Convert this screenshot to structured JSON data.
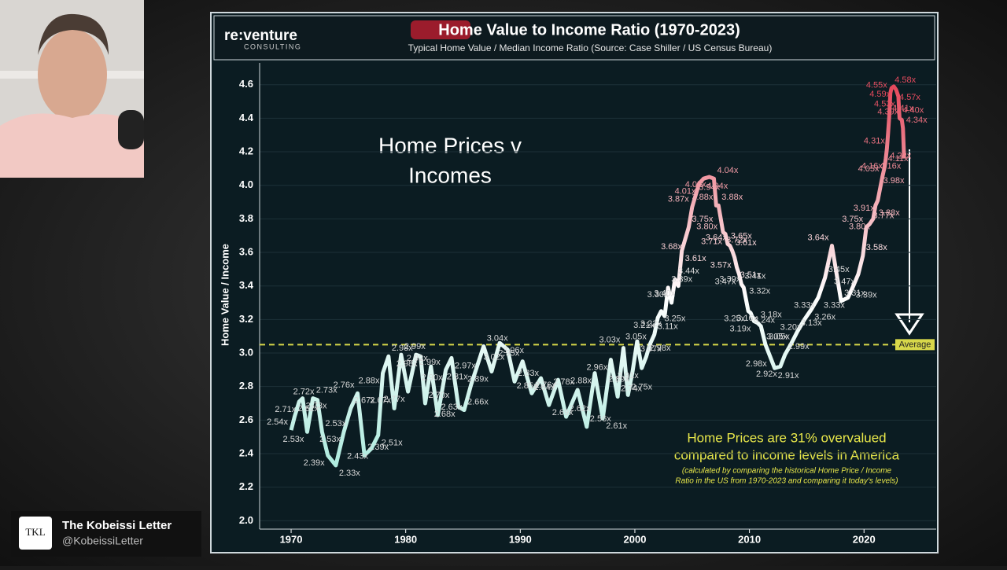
{
  "overlay": {
    "badge_logo": "TKL",
    "badge_name": "The Kobeissi Letter",
    "badge_handle": "@KobeissiLetter"
  },
  "header": {
    "logo": "re:venture",
    "logo_sub": "CONSULTING"
  },
  "chart_data": {
    "type": "line",
    "title": "Home Value to Income Ratio (1970-2023)",
    "subtitle": "Typical Home Value / Median Income Ratio (Source: Case Shiller / US Census Bureau)",
    "y_label": "Home Value / Income",
    "annotations": [
      "Home Prices v",
      "Incomes",
      "Home Prices are 31% overvalued",
      "compared to income levels in America",
      "(calculated by comparing the historical Home Price / Income",
      "Ratio in the US from 1970-2023 and comparing it today's levels)"
    ],
    "average": {
      "label": "Average",
      "value": 3.05,
      "color": "#d8d84a"
    },
    "gradient_colors": [
      "#8fe3d2",
      "#ffffff",
      "#e2354a"
    ],
    "xlim": [
      1967.25,
      2026.3
    ],
    "xticks": [
      1970,
      1980,
      1990,
      2000,
      2010,
      2020
    ],
    "ylim": [
      1.95,
      4.73
    ],
    "yticks": [
      {
        "value": 2,
        "label": "2.0"
      },
      2.2,
      2.4,
      2.6,
      2.8,
      {
        "value": 3,
        "label": "3.0"
      },
      3.2,
      3.4,
      3.6,
      3.8,
      {
        "value": 4,
        "label": "4.0"
      },
      4.2,
      4.4,
      4.6
    ],
    "grid": true,
    "series": [
      {
        "name": "Home Value / Income",
        "x": [
          1970.0,
          1970.3,
          1970.7,
          1971.0,
          1971.4,
          1971.9,
          1972.3,
          1972.7,
          1973.2,
          1973.9,
          1974.6,
          1975.2,
          1975.8,
          1976.4,
          1977.0,
          1977.6,
          1978.0,
          1978.5,
          1979.0,
          1979.6,
          1980.2,
          1980.9,
          1981.3,
          1981.7,
          1982.2,
          1982.8,
          1983.5,
          1984.0,
          1984.6,
          1985.1,
          1985.7,
          1986.8,
          1987.5,
          1988.2,
          1988.9,
          1989.5,
          1990.2,
          1991.0,
          1991.8,
          1992.5,
          1993.3,
          1994.0,
          1995.0,
          1995.8,
          1996.5,
          1997.2,
          1997.9,
          1998.5,
          1999.0,
          1999.4,
          1999.8,
          2000.2,
          2000.6,
          2001.0,
          2001.3,
          2001.7,
          2002.0,
          2002.3,
          2002.6,
          2002.9,
          2003.2,
          2003.5,
          2003.8,
          2004.1,
          2004.4,
          2004.7,
          2005.0,
          2005.3,
          2005.6,
          2006.0,
          2006.5,
          2006.9,
          2007.1,
          2007.3,
          2007.5,
          2007.7,
          2007.9,
          2008.1,
          2008.3,
          2008.5,
          2008.7,
          2008.9,
          2009.1,
          2009.3,
          2009.5,
          2009.7,
          2009.9,
          2010.1,
          2010.4,
          2010.7,
          2011.0,
          2011.4,
          2011.8,
          2012.2,
          2012.7,
          2013.1,
          2013.6,
          2014.2,
          2014.8,
          2015.4,
          2016.0,
          2016.6,
          2017.2,
          2018.0,
          2018.6,
          2019.0,
          2019.5,
          2019.9,
          2020.2,
          2020.5,
          2020.8,
          2021.0,
          2021.2,
          2021.4,
          2021.6,
          2021.8,
          2021.9,
          2022.0,
          2022.1,
          2022.2,
          2022.3,
          2022.4,
          2022.6,
          2022.8,
          2023.0,
          2023.1,
          2023.3,
          2023.4,
          2023.5
        ],
        "values": [
          2.54,
          2.62,
          2.71,
          2.73,
          2.53,
          2.73,
          2.72,
          2.53,
          2.39,
          2.33,
          2.53,
          2.67,
          2.76,
          2.39,
          2.43,
          2.51,
          2.88,
          2.98,
          2.67,
          2.99,
          2.77,
          2.99,
          2.98,
          2.7,
          2.92,
          2.63,
          2.9,
          2.97,
          2.68,
          2.66,
          2.81,
          3.04,
          2.89,
          3.06,
          3.02,
          2.83,
          2.95,
          2.76,
          2.85,
          2.69,
          2.84,
          2.62,
          2.78,
          2.56,
          2.88,
          2.61,
          2.96,
          2.74,
          3.03,
          2.75,
          2.89,
          3.07,
          2.91,
          2.98,
          3.05,
          3.11,
          3.21,
          3.25,
          3.22,
          3.39,
          3.3,
          3.44,
          3.4,
          3.61,
          3.68,
          3.75,
          3.87,
          3.94,
          4.01,
          4.04,
          4.05,
          4.04,
          3.88,
          3.88,
          3.8,
          3.72,
          3.71,
          3.65,
          3.64,
          3.61,
          3.57,
          3.51,
          3.47,
          3.41,
          3.39,
          3.32,
          3.25,
          3.24,
          3.19,
          3.18,
          3.16,
          3.05,
          2.98,
          2.91,
          2.92,
          2.99,
          3.05,
          3.13,
          3.2,
          3.26,
          3.33,
          3.45,
          3.64,
          3.31,
          3.33,
          3.39,
          3.47,
          3.58,
          3.75,
          3.77,
          3.8,
          3.88,
          3.91,
          3.98,
          4.05,
          4.11,
          4.16,
          4.22,
          4.31,
          4.41,
          4.55,
          4.58,
          4.59,
          4.57,
          4.53,
          4.4,
          4.39,
          4.34,
          4.16
        ],
        "value_labels": [
          "2.54x",
          "2.62x",
          "2.71x",
          "2.73x",
          "2.53x",
          "2.73x",
          "2.72x",
          "2.53x",
          "2.39x",
          "2.33x",
          "2.53x",
          "2.67x",
          "2.76x",
          "2.39x",
          "2.43x",
          "2.51x",
          "2.88x",
          "2.98x",
          "2.67x",
          "2.99x",
          "2.77x",
          "2.99x",
          "2.98x",
          "2.70x",
          "2.92x",
          "2.63x",
          "2.90x",
          "2.97x",
          "2.68x",
          "2.66x",
          "2.81x",
          "3.04x",
          "2.89x",
          "3.06x",
          "3.02x",
          "2.83x",
          "2.95x",
          "2.76x",
          "2.85x",
          "2.69x",
          "2.84x",
          "2.62x",
          "2.78x",
          "2.56x",
          "2.88x",
          "2.61x",
          "2.96x",
          "2.74x",
          "3.03x",
          "2.75x",
          "2.89x",
          "3.07x",
          "2.91x",
          "2.98x",
          "3.05x",
          "3.11x",
          "3.21x",
          "3.25x",
          "3.22x",
          "3.39x",
          "3.30x",
          "3.44x",
          "3.40x",
          "3.61x",
          "3.68x",
          "3.75x",
          "3.87x",
          "3.94x",
          "4.01x",
          "4.04x",
          "4.05x",
          "4.04x",
          "3.88x",
          "3.88x",
          "3.80x",
          "3.72x",
          "3.71x",
          "3.65x",
          "3.64x",
          "3.61x",
          "3.57x",
          "3.51x",
          "3.47x",
          "3.41x",
          "3.39x",
          "3.32x",
          "3.25x",
          "3.24x",
          "3.19x",
          "3.18x",
          "3.16x",
          "3.05x",
          "2.98x",
          "2.91x",
          "2.92x",
          "2.99x",
          "3.05x",
          "3.13x",
          "3.20x",
          "3.26x",
          "3.33x",
          "3.45x",
          "3.64x",
          "3.31x",
          "3.33x",
          "3.39x",
          "3.47x",
          "3.58x",
          "3.75x",
          "3.77x",
          "3.80x",
          "3.88x",
          "3.91x",
          "3.98x",
          "4.05x",
          "4.11x",
          "4.16x",
          "4.22x",
          "4.31x",
          "4.41x",
          "4.55x",
          "4.58x",
          "4.59x",
          "4.57x",
          "4.53x",
          "4.40x",
          "4.39x",
          "4.34x",
          "4.16x"
        ]
      }
    ]
  }
}
